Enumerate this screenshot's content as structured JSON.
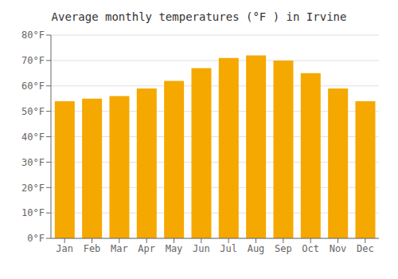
{
  "chart_data": {
    "type": "bar",
    "title": "Average monthly temperatures (°F ) in Irvine",
    "categories": [
      "Jan",
      "Feb",
      "Mar",
      "Apr",
      "May",
      "Jun",
      "Jul",
      "Aug",
      "Sep",
      "Oct",
      "Nov",
      "Dec"
    ],
    "values": [
      54,
      55,
      56,
      59,
      62,
      67,
      71,
      72,
      70,
      65,
      59,
      54
    ],
    "color": "#F5A800",
    "ylim": [
      0,
      80
    ],
    "yticks": [
      {
        "value": 0,
        "label": "0°F"
      },
      {
        "value": 10,
        "label": "10°F"
      },
      {
        "value": 20,
        "label": "20°F"
      },
      {
        "value": 30,
        "label": "30°F"
      },
      {
        "value": 40,
        "label": "40°F"
      },
      {
        "value": 50,
        "label": "50°F"
      },
      {
        "value": 60,
        "label": "60°F"
      },
      {
        "value": 70,
        "label": "70°F"
      },
      {
        "value": 80,
        "label": "80°F"
      }
    ],
    "grid": true
  }
}
